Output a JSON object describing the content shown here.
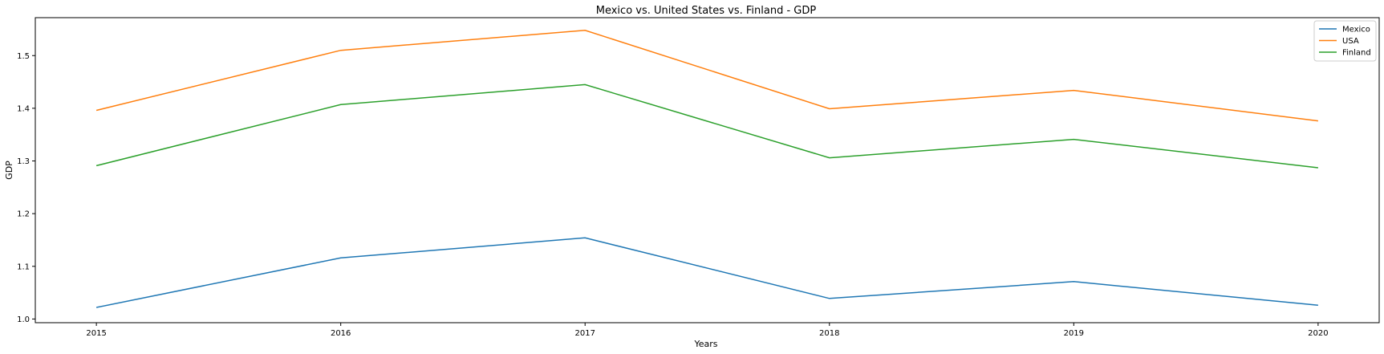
{
  "chart_data": {
    "type": "line",
    "title": "Mexico vs. United States vs. Finland - GDP",
    "xlabel": "Years",
    "ylabel": "GDP",
    "x": [
      "2015",
      "2016",
      "2017",
      "2018",
      "2019",
      "2020"
    ],
    "xlim": [
      2014.75,
      2020.25
    ],
    "ylim": [
      0.993,
      1.572
    ],
    "yticks": [
      "1.0",
      "1.1",
      "1.2",
      "1.3",
      "1.4",
      "1.5"
    ],
    "grid": false,
    "legend_position": "top-right",
    "series": [
      {
        "name": "Mexico",
        "color": "#1f77b4",
        "values": [
          1.022,
          1.116,
          1.154,
          1.039,
          1.071,
          1.026
        ]
      },
      {
        "name": "USA",
        "color": "#ff7f0e",
        "values": [
          1.396,
          1.51,
          1.548,
          1.399,
          1.434,
          1.376
        ]
      },
      {
        "name": "Finland",
        "color": "#2ca02c",
        "values": [
          1.291,
          1.407,
          1.445,
          1.306,
          1.341,
          1.287
        ]
      }
    ]
  }
}
